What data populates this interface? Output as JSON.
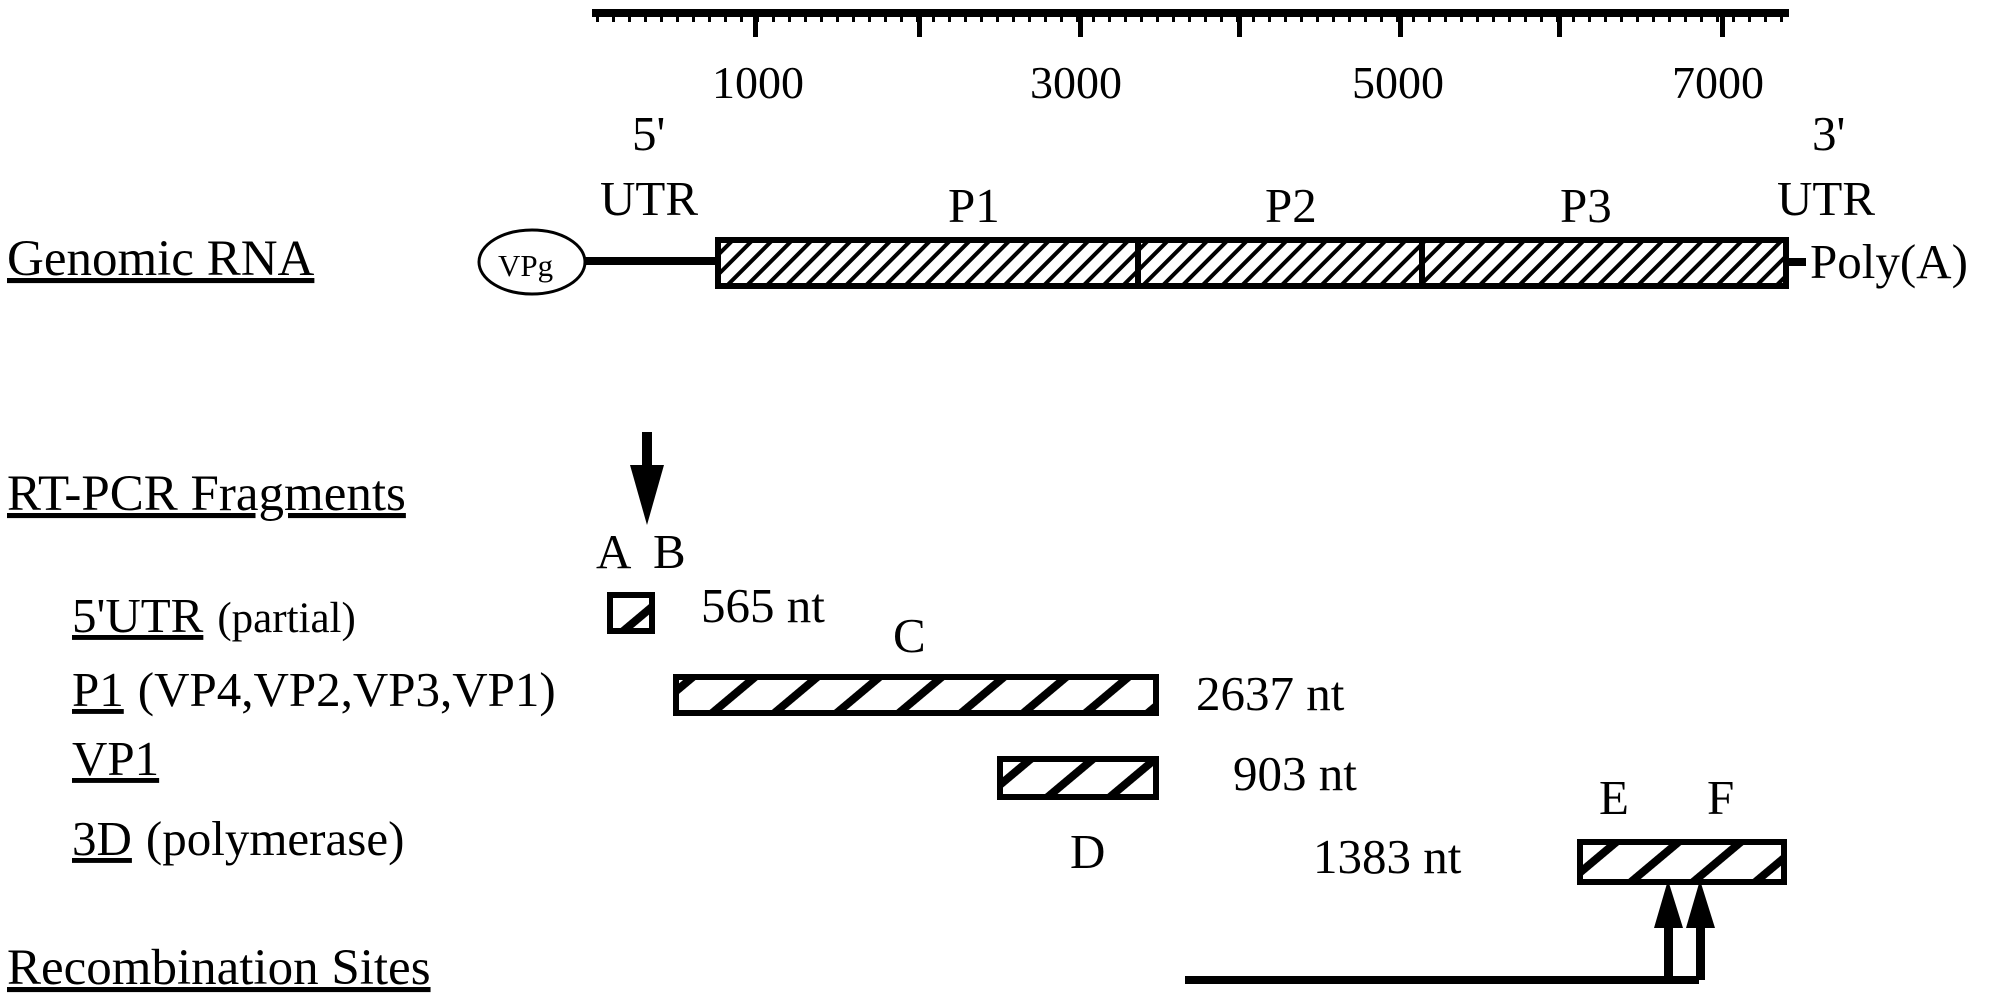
{
  "scale": {
    "tick_labels": [
      "1000",
      "3000",
      "5000",
      "7000"
    ]
  },
  "genome": {
    "row_label": "Genomic RNA",
    "vpg": "VPg",
    "utr5_line1": "5'",
    "utr5_line2": "UTR",
    "utr3_line1": "3'",
    "utr3_line2": "UTR",
    "regions": [
      "P1",
      "P2",
      "P3"
    ],
    "polya": "Poly(A)"
  },
  "fragments": {
    "section_title": "RT-PCR Fragments",
    "rows": [
      {
        "name": "5'UTR",
        "detail": "(partial)",
        "size": "565 nt"
      },
      {
        "name": "P1",
        "detail": "(VP4,VP2,VP3,VP1)",
        "size": "2637 nt"
      },
      {
        "name": "VP1",
        "detail": "",
        "size": "903 nt"
      },
      {
        "name": "3D",
        "detail": "(polymerase)",
        "size": "1383 nt"
      }
    ],
    "markers": [
      "A",
      "B",
      "C",
      "D",
      "E",
      "F"
    ]
  },
  "recombination": {
    "section_title": "Recombination Sites"
  }
}
